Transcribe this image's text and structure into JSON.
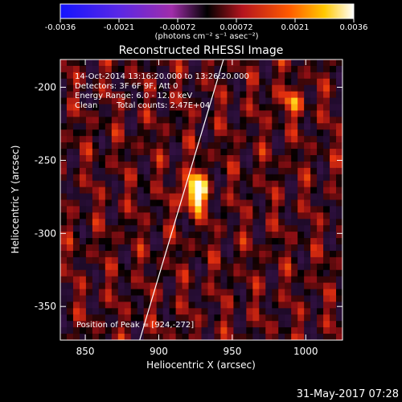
{
  "chart_data": {
    "type": "heatmap",
    "title": "Reconstructed RHESSI Image",
    "xlabel": "Heliocentric X (arcsec)",
    "ylabel": "Heliocentric Y (arcsec)",
    "xlim": [
      833,
      1025
    ],
    "ylim": [
      -373,
      -181
    ],
    "x_ticks": [
      850,
      900,
      950,
      1000
    ],
    "y_ticks": [
      -200,
      -250,
      -300,
      -350
    ],
    "colorbar": {
      "colormap": "hot-bipolar",
      "range": [
        -0.0036,
        0.0036
      ],
      "ticks": [
        "-0.0036",
        "-0.0021",
        "-0.00072",
        "0.00072",
        "0.0021",
        "0.0036"
      ],
      "unit_label": "(photons cm⁻² s⁻¹ asec⁻²)"
    },
    "annotations": {
      "time_range": "14-Oct-2014 13:16:20.000 to 13:26:20.000",
      "detectors": "Detectors: 3F 6F 9F, Att 0",
      "energy_range": "Energy Range: 6.0 - 12.0 keV",
      "algorithm": "Clean",
      "total_counts": "Total counts: 2.47E+04",
      "peak": "Position of Peak = [924,-272]"
    },
    "peak_position": [
      924,
      -272
    ],
    "limb_line": [
      [
        887,
        -373
      ],
      [
        944,
        -181
      ]
    ],
    "footer_date": "31-May-2017 07:28"
  }
}
